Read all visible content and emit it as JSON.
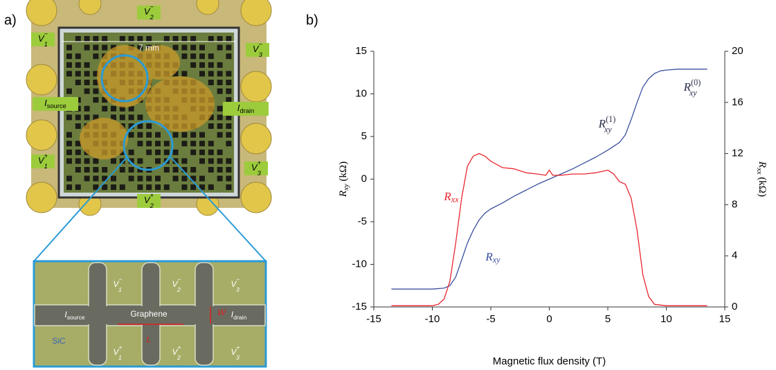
{
  "panel_a": {
    "label": "a)",
    "scale": "7 mm",
    "photo_labels": [
      {
        "base": "V",
        "sub": "2",
        "sup": "−"
      },
      {
        "base": "V",
        "sub": "1",
        "sup": "−"
      },
      {
        "base": "V",
        "sub": "3",
        "sup": "−"
      },
      {
        "base": "I",
        "sub": "source"
      },
      {
        "base": "I",
        "sub": "drain"
      },
      {
        "base": "V",
        "sub": "1",
        "sup": "+"
      },
      {
        "base": "V",
        "sub": "3",
        "sup": "+"
      },
      {
        "base": "V",
        "sub": "2",
        "sup": "+"
      }
    ],
    "inset_labels": [
      {
        "base": "V",
        "sub": "1",
        "sup": "−"
      },
      {
        "base": "V",
        "sub": "2",
        "sup": "−"
      },
      {
        "base": "V",
        "sub": "3",
        "sup": "−"
      },
      {
        "base": "I",
        "sub": "source"
      },
      {
        "base": "Graphene"
      },
      {
        "base": "W"
      },
      {
        "base": "I",
        "sub": "drain"
      },
      {
        "base": "L"
      },
      {
        "base": "SiC"
      },
      {
        "base": "V",
        "sub": "1",
        "sup": "+"
      },
      {
        "base": "V",
        "sub": "2",
        "sup": "+"
      },
      {
        "base": "V",
        "sub": "3",
        "sup": "+"
      }
    ]
  },
  "panel_b_label": "b)",
  "chart_data": {
    "type": "line",
    "xlabel": "Magnetic flux density (T)",
    "ylabel": {
      "base": "R",
      "sub": "xy",
      "unit": " (kΩ)"
    },
    "y2label": {
      "base": "R",
      "sub": "xx",
      "unit": " (kΩ)"
    },
    "xlim": [
      -15,
      15
    ],
    "ylim": [
      -15,
      15
    ],
    "y2lim": [
      0,
      20
    ],
    "xticks": [
      -15,
      -10,
      -5,
      0,
      5,
      10,
      15
    ],
    "yticks": [
      -15,
      -10,
      -5,
      0,
      5,
      10,
      15
    ],
    "y2ticks": [
      0,
      4,
      8,
      12,
      16,
      20
    ],
    "series": [
      {
        "name": "Rxy",
        "color": "#3a4f9e",
        "x": [
          -13.5,
          -10,
          -9,
          -8.5,
          -8,
          -7.5,
          -7,
          -6.5,
          -6,
          -5.5,
          -5,
          -4,
          -3,
          -2,
          -1,
          0,
          1,
          2,
          3,
          4,
          5,
          6,
          6.5,
          7,
          7.5,
          8,
          8.5,
          9,
          9.5,
          10,
          11,
          12,
          13.5
        ],
        "values": [
          -12.9,
          -12.9,
          -12.8,
          -12.5,
          -11.5,
          -9.5,
          -7.5,
          -6,
          -4.8,
          -4,
          -3.5,
          -2.8,
          -2,
          -1.3,
          -0.6,
          0,
          0.6,
          1.2,
          1.9,
          2.6,
          3.4,
          4.3,
          5.2,
          7,
          9,
          10.8,
          11.8,
          12.4,
          12.7,
          12.8,
          12.9,
          12.9,
          12.9
        ]
      },
      {
        "name": "Rxx",
        "color": "#e8262f",
        "axis": "y2",
        "x": [
          -13.5,
          -10,
          -9.5,
          -9,
          -8.5,
          -8,
          -7.5,
          -7,
          -6.5,
          -6,
          -5.5,
          -5,
          -4,
          -3,
          -2,
          -1,
          -0.3,
          0,
          0.3,
          1,
          2,
          3,
          4,
          5,
          5.5,
          6,
          6.5,
          7,
          7.5,
          8,
          8.5,
          9,
          10,
          13.5
        ],
        "values": [
          0.1,
          0.1,
          0.2,
          0.6,
          2,
          5,
          8.5,
          11,
          11.8,
          12,
          11.8,
          11.4,
          10.9,
          10.8,
          10.5,
          10.4,
          10.3,
          10.7,
          10.3,
          10.3,
          10.4,
          10.4,
          10.5,
          10.7,
          10.4,
          9.8,
          9.6,
          8.5,
          6,
          2.5,
          0.8,
          0.2,
          0.1,
          0.1
        ]
      }
    ],
    "annotations": [
      {
        "base": "R",
        "sub": "xx",
        "color": "#e8262f"
      },
      {
        "base": "R",
        "sub": "xy",
        "color": "#3a4f9e"
      },
      {
        "base": "R",
        "sub": "xy",
        "sup": "(1)",
        "color": "#2a2f4a"
      },
      {
        "base": "R",
        "sub": "xy",
        "sup": "(0)",
        "color": "#2a2f4a"
      }
    ]
  }
}
